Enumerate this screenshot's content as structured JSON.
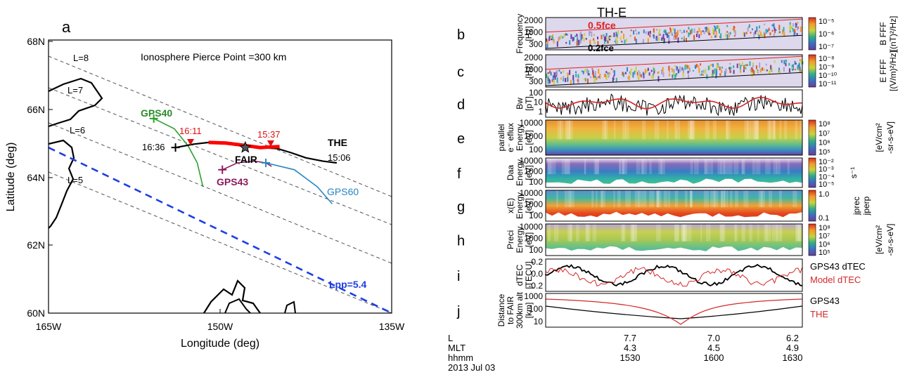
{
  "chart_data": [
    {
      "type": "map",
      "panel": "a",
      "text": {
        "title": "Ionosphere Pierce Point =300 km",
        "xlabel": "Longitude (deg)",
        "ylabel": "Latitude (deg)",
        "x_ticks": [
          "165W",
          "150W",
          "135W"
        ],
        "y_ticks": [
          "60N",
          "62N",
          "64N",
          "66N",
          "68N"
        ],
        "l_shells": [
          "L=5",
          "L=6",
          "L=7",
          "L=8"
        ],
        "lpp": "Lpp=5.4",
        "gps40": "GPS40",
        "gps43": "GPS43",
        "gps60": "GPS60",
        "the": "THE",
        "fair": "FAIR",
        "t1": "16:36",
        "t2": "16:11",
        "t3": "15:37",
        "t4": "15:06"
      },
      "xlim": [
        -165,
        -135
      ],
      "ylim": [
        60,
        68
      ],
      "series": [
        {
          "name": "GPS40",
          "color": "#2ca02c",
          "points": [
            [
              -155.8,
              65.7
            ],
            [
              -154.0,
              65.4
            ],
            [
              -152.8,
              64.9
            ],
            [
              -152.0,
              64.4
            ],
            [
              -151.5,
              63.7
            ]
          ]
        },
        {
          "name": "GPS43",
          "color": "#8b1a5c",
          "points": [
            [
              -149.8,
              64.2
            ],
            [
              -148.5,
              64.4
            ],
            [
              -147.0,
              64.45
            ],
            [
              -146.0,
              64.4
            ],
            [
              -145.5,
              64.3
            ]
          ]
        },
        {
          "name": "GPS60",
          "color": "#2a86c0",
          "points": [
            [
              -146.0,
              64.4
            ],
            [
              -143.5,
              64.2
            ],
            [
              -141.5,
              63.7
            ],
            [
              -140.2,
              63.2
            ]
          ]
        },
        {
          "name": "THE",
          "color": "#000000",
          "points": [
            [
              -153.9,
              64.85
            ],
            [
              -152.3,
              64.95
            ],
            [
              -151.0,
              65.0
            ],
            [
              -149.5,
              64.98
            ],
            [
              -148.0,
              64.92
            ],
            [
              -146.5,
              64.85
            ],
            [
              -145.0,
              64.82
            ],
            [
              -143.8,
              64.7
            ],
            [
              -142.5,
              64.55
            ],
            [
              -141.0,
              64.45
            ],
            [
              -139.8,
              64.4
            ]
          ]
        },
        {
          "name": "THE-highlight",
          "color": "#ff0000",
          "points": [
            [
              -151.0,
              65.0
            ],
            [
              -149.5,
              64.98
            ],
            [
              -148.0,
              64.92
            ],
            [
              -146.5,
              64.85
            ],
            [
              -144.8,
              64.88
            ]
          ]
        }
      ],
      "fair_point": [
        -147.8,
        64.85
      ],
      "lpp_line": [
        [
          -165,
          64.85
        ],
        [
          -135,
          60.0
        ]
      ]
    },
    {
      "type": "stacked-panels",
      "title": "TH-E",
      "panels": [
        {
          "letter": "b",
          "label_lines": [
            "Frequency",
            "[Hz]"
          ],
          "ticks": [
            "2000",
            "1000",
            "300"
          ],
          "right": [
            "B FFF",
            "[(nT)²/Hz]"
          ],
          "cbar": [
            "10⁻⁵",
            "10⁻⁶",
            "10⁻⁷"
          ],
          "ann_a": "0.5fce",
          "ann_b": "0.2fce"
        },
        {
          "letter": "c",
          "label_lines": [
            "",
            "[Hz]"
          ],
          "ticks": [
            "2000",
            "1000",
            "300"
          ],
          "right": [
            "E FFF",
            "[(V/m)²/Hz]"
          ],
          "cbar": [
            "10⁻⁸",
            "10⁻⁹",
            "10⁻¹⁰",
            "10⁻¹¹"
          ]
        },
        {
          "letter": "d",
          "label_lines": [
            "Bw",
            "[pT]"
          ],
          "ticks": [
            "100",
            "10",
            "1"
          ],
          "series": [
            {
              "name": "Bw",
              "color": "#000000"
            },
            {
              "name": "smoothed",
              "color": "#d62728"
            }
          ]
        },
        {
          "letter": "e",
          "label_lines": [
            "parallel",
            "e⁻ eflux",
            "Energy",
            "[eV]"
          ],
          "ticks": [
            "10000",
            "1000",
            "100"
          ],
          "right": [
            "[eV/cm²",
            "-sr-s-eV]"
          ],
          "cbar": [
            "10⁸",
            "10⁷",
            "10⁶",
            "10⁵"
          ]
        },
        {
          "letter": "f",
          "label_lines": [
            "Daa",
            "Energy",
            "[eV]"
          ],
          "ticks": [
            "10000",
            "1000",
            "100"
          ],
          "right": [
            "s⁻¹"
          ],
          "cbar": [
            "10⁻²",
            "10⁻³",
            "10⁻⁴",
            "10⁻⁵"
          ]
        },
        {
          "letter": "g",
          "label_lines": [
            "x(E)",
            "Energy",
            "[eV]"
          ],
          "ticks": [
            "10000",
            "1000",
            "100"
          ],
          "right": [
            "jprec",
            "jperp"
          ],
          "cbar": [
            "1.0",
            "0.1"
          ]
        },
        {
          "letter": "h",
          "label_lines": [
            "Preci",
            "Energy",
            "[eV]"
          ],
          "ticks": [
            "10000",
            "1000",
            "100"
          ],
          "right": [
            "[eV/cm²",
            "-sr-s-eV]"
          ],
          "cbar": [
            "10⁸",
            "10⁷",
            "10⁶",
            "10⁵"
          ]
        },
        {
          "letter": "i",
          "label_lines": [
            "dTEC",
            "[TECU]"
          ],
          "ticks": [
            "0.2",
            "0.0",
            "-0.2"
          ],
          "legend": [
            {
              "name": "GPS43 dTEC",
              "color": "#000000"
            },
            {
              "name": "Model dTEC",
              "color": "#d62728"
            }
          ],
          "ylim": [
            -0.3,
            0.3
          ]
        },
        {
          "letter": "j",
          "label_lines": [
            "Distance",
            "to FAIR",
            "300km alt",
            "[km]"
          ],
          "ticks": [
            "1000",
            "100",
            "10"
          ],
          "legend": [
            {
              "name": "GPS43",
              "color": "#000000"
            },
            {
              "name": "THE",
              "color": "#d62728"
            }
          ]
        }
      ],
      "x_axis": {
        "row_labels": [
          "L",
          "MLT",
          "hhmm",
          "2013 Jul 03"
        ],
        "ticks": [
          {
            "L": "7.7",
            "MLT": "4.3",
            "hhmm": "1530"
          },
          {
            "L": "7.0",
            "MLT": "4.5",
            "hhmm": "1600"
          },
          {
            "L": "6.2",
            "MLT": "4.9",
            "hhmm": "1630"
          }
        ]
      }
    }
  ]
}
